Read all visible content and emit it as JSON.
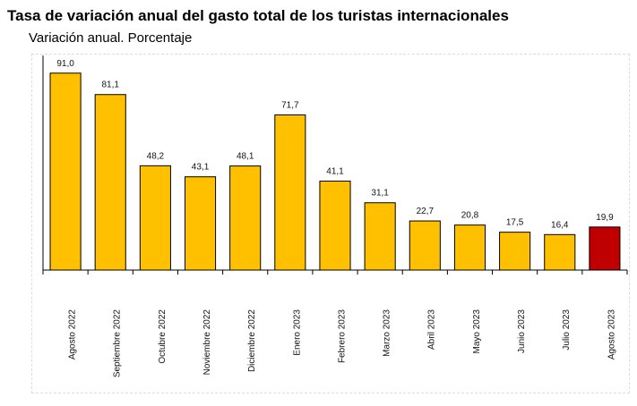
{
  "header": {
    "title": "Tasa de variación anual del gasto total de los turistas internacionales",
    "subtitle": "Variación anual. Porcentaje"
  },
  "colors": {
    "bar": "#FFC000",
    "highlight": "#C00000",
    "bar_stroke": "#000000"
  },
  "chart_data": {
    "type": "bar",
    "title": "Tasa de variación anual del gasto total de los turistas internacionales",
    "subtitle": "Variación anual. Porcentaje",
    "categories": [
      "Agosto 2022",
      "Septiembre 2022",
      "Octubre 2022",
      "Noviembre 2022",
      "Diciembre 2022",
      "Enero 2023",
      "Febrero 2023",
      "Marzo 2023",
      "Abril 2023",
      "Mayo 2023",
      "Junio 2023",
      "Julio 2023",
      "Agosto 2023"
    ],
    "values": [
      91.0,
      81.1,
      48.2,
      43.1,
      48.1,
      71.7,
      41.1,
      31.1,
      22.7,
      20.8,
      17.5,
      16.4,
      19.9
    ],
    "value_labels": [
      "91,0",
      "81,1",
      "48,2",
      "43,1",
      "48,1",
      "71,7",
      "41,1",
      "31,1",
      "22,7",
      "20,8",
      "17,5",
      "16,4",
      "19,9"
    ],
    "highlight_index": 12,
    "ylim": [
      0,
      100
    ],
    "xlabel": "",
    "ylabel": "",
    "grid": false,
    "legend": "none"
  }
}
